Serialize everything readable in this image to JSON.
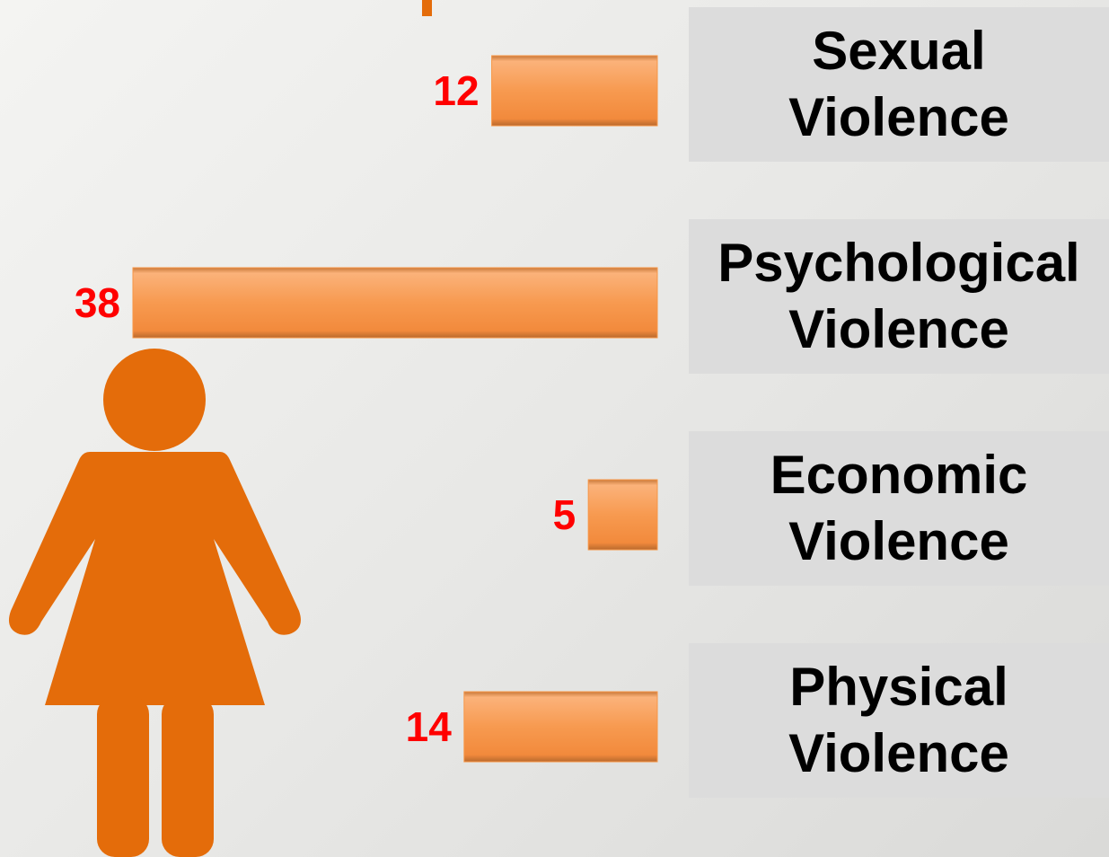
{
  "chart_data": {
    "type": "bar",
    "orientation": "horizontal",
    "categories": [
      "Sexual\nViolence",
      "Psychological\nViolence",
      "Economic\nViolence",
      "Physical\nViolence"
    ],
    "values": [
      12,
      38,
      5,
      14
    ],
    "color": "#f79646",
    "label_color": "#ff0000"
  }
}
